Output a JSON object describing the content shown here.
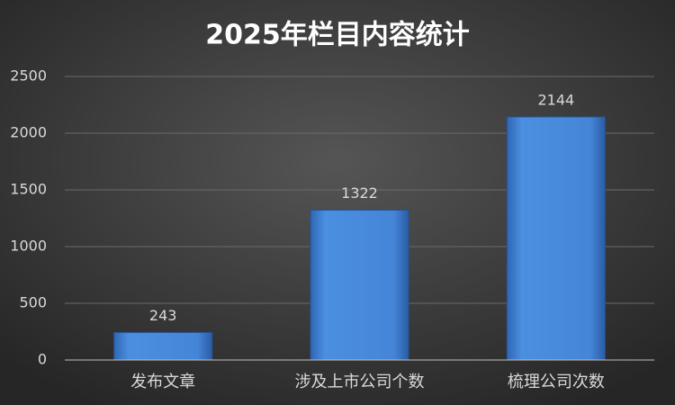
{
  "chart_data": {
    "type": "bar",
    "title": "2025年栏目内容统计",
    "categories": [
      "发布文章",
      "涉及上市公司个数",
      "梳理公司次数"
    ],
    "values": [
      243,
      1322,
      2144
    ],
    "ylim": [
      0,
      2500
    ],
    "yticks": [
      0,
      500,
      1000,
      1500,
      2000,
      2500
    ],
    "grid": true,
    "data_labels": true
  }
}
